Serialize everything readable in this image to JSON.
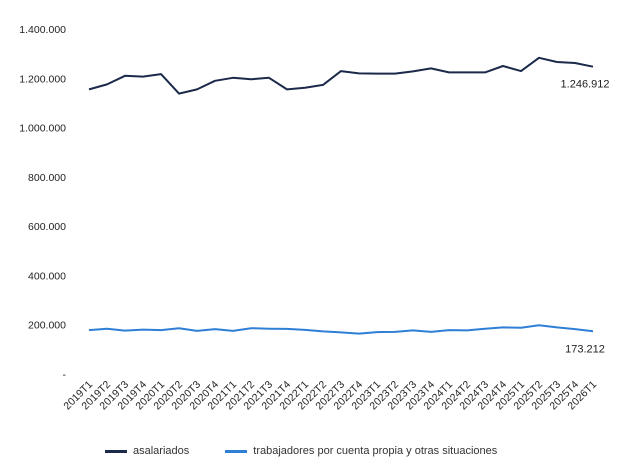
{
  "chart_data": {
    "type": "line",
    "categories": [
      "2019T1",
      "2019T2",
      "2019T3",
      "2019T4",
      "2020T1",
      "2020T2",
      "2020T3",
      "2020T4",
      "2021T1",
      "2021T2",
      "2021T3",
      "2021T4",
      "2022T1",
      "2022T2",
      "2022T3",
      "2022T4",
      "2023T1",
      "2023T2",
      "2023T3",
      "2023T4",
      "2024T1",
      "2024T2",
      "2024T3",
      "2024T4",
      "2025T1",
      "2025T2",
      "2025T3",
      "2025T4",
      "2026T1"
    ],
    "y_ticks": [
      "-",
      "200.000",
      "400.000",
      "600.000",
      "800.000",
      "1.000.000",
      "1.200.000",
      "1.400.000"
    ],
    "ylim": [
      0,
      1400000
    ],
    "grid": false,
    "legend_position": "bottom",
    "series": [
      {
        "name": "asalariados",
        "color": "#1b2a4a",
        "values": [
          1155000,
          1175000,
          1210000,
          1207000,
          1217000,
          1138000,
          1155000,
          1190000,
          1202000,
          1196000,
          1202000,
          1155000,
          1162000,
          1173000,
          1229000,
          1220000,
          1219000,
          1219000,
          1228000,
          1240000,
          1224000,
          1224000,
          1224000,
          1250000,
          1229000,
          1283000,
          1266000,
          1262000,
          1246912
        ],
        "end_label": "1.246.912"
      },
      {
        "name": "trabajadores por cuenta propia y otras situaciones",
        "color": "#2f7fd6",
        "values": [
          178000,
          184000,
          176000,
          180000,
          178000,
          186000,
          175000,
          182000,
          175000,
          186000,
          184000,
          183000,
          179000,
          173000,
          169000,
          164000,
          170000,
          171000,
          177000,
          171000,
          178000,
          177000,
          184000,
          189000,
          188000,
          198000,
          189000,
          182000,
          173212
        ],
        "end_label": "173.212"
      }
    ]
  }
}
